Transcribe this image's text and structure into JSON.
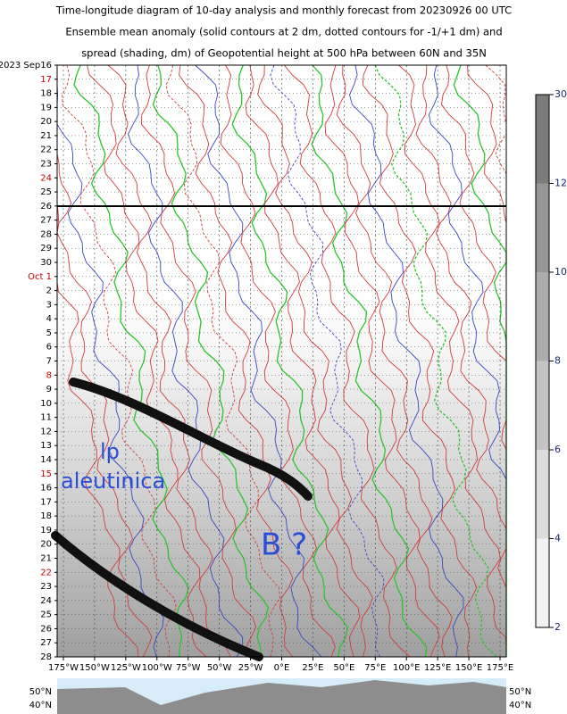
{
  "chart_data": {
    "type": "hovmoller",
    "title": [
      "Time-longitude diagram of 10-day analysis and monthly forecast from 20230926 00 UTC",
      "Ensemble mean anomaly (solid contours at 2 dm, dotted contours for -1/+1 dm) and",
      "spread (shading, dm) of Geopotential height at 500 hPa between 60N and 35N"
    ],
    "categories": [
      "2023 Sep16",
      "17",
      "18",
      "19",
      "20",
      "21",
      "22",
      "23",
      "24",
      "25",
      "26",
      "27",
      "28",
      "29",
      "30",
      "Oct 1",
      "2",
      "3",
      "4",
      "5",
      "6",
      "7",
      "8",
      "9",
      "10",
      "11",
      "12",
      "13",
      "14",
      "15",
      "16",
      "17",
      "18",
      "19",
      "20",
      "21",
      "22",
      "23",
      "24",
      "25",
      "26",
      "27",
      "28"
    ],
    "xlim": [
      -180,
      180
    ],
    "xticks": [
      {
        "value": -175,
        "label": "175°W"
      },
      {
        "value": -150,
        "label": "150°W"
      },
      {
        "value": -125,
        "label": "125°W"
      },
      {
        "value": -100,
        "label": "100°W"
      },
      {
        "value": -75,
        "label": "75°W"
      },
      {
        "value": -50,
        "label": "50°W"
      },
      {
        "value": -25,
        "label": "25°W"
      },
      {
        "value": 0,
        "label": "0°E"
      },
      {
        "value": 25,
        "label": "25°E"
      },
      {
        "value": 50,
        "label": "50°E"
      },
      {
        "value": 75,
        "label": "75°E"
      },
      {
        "value": 100,
        "label": "100°E"
      },
      {
        "value": 125,
        "label": "125°E"
      },
      {
        "value": 150,
        "label": "150°E"
      },
      {
        "value": 175,
        "label": "175°E"
      }
    ],
    "grid": true,
    "colorbar": {
      "levels": [
        2,
        4,
        6,
        8,
        10,
        12,
        30
      ],
      "colors": [
        "#f2f2f2",
        "#dcdcdc",
        "#c4c4c4",
        "#acacac",
        "#959595",
        "#7c7c7c"
      ]
    },
    "annotations": [
      "lp",
      "aleutinica",
      "B ?"
    ],
    "map": {
      "lat_labels": [
        "50°N",
        "40°N"
      ]
    }
  }
}
